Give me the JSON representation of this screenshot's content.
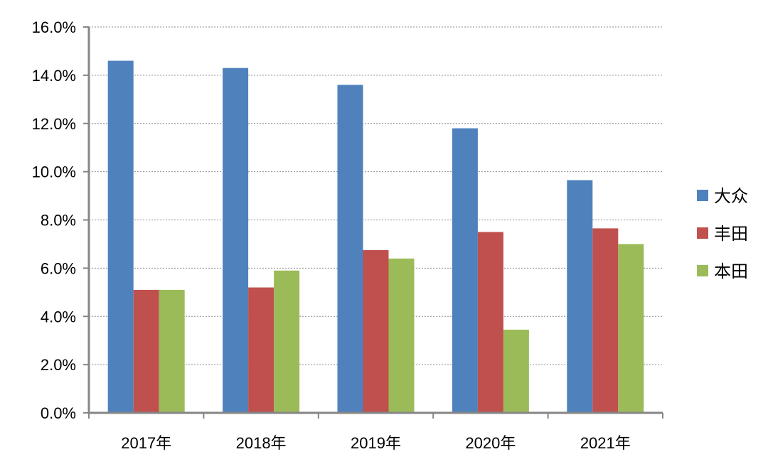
{
  "chart_data": {
    "type": "bar",
    "title": "",
    "xlabel": "",
    "ylabel": "",
    "categories": [
      "2017年",
      "2018年",
      "2019年",
      "2020年",
      "2021年"
    ],
    "series": [
      {
        "name": "大众",
        "color": "#4F81BD",
        "values": [
          14.6,
          14.3,
          13.6,
          11.8,
          9.65
        ]
      },
      {
        "name": "丰田",
        "color": "#C0504D",
        "values": [
          5.1,
          5.2,
          6.75,
          7.5,
          7.65
        ]
      },
      {
        "name": "本田",
        "color": "#9BBB59",
        "values": [
          5.1,
          5.9,
          6.4,
          3.45,
          7.0
        ]
      }
    ],
    "ylim": [
      0,
      16
    ],
    "y_ticks": [
      "0.0%",
      "2.0%",
      "4.0%",
      "6.0%",
      "8.0%",
      "10.0%",
      "12.0%",
      "14.0%",
      "16.0%"
    ],
    "y_tick_values": [
      0,
      2,
      4,
      6,
      8,
      10,
      12,
      14,
      16
    ],
    "grid": true,
    "legend_position": "right"
  }
}
